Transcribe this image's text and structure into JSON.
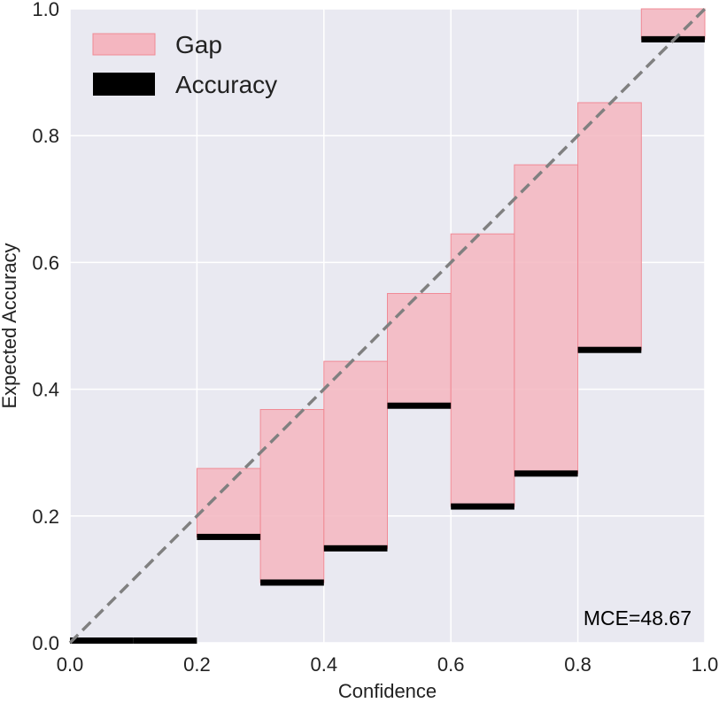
{
  "chart_data": {
    "type": "bar",
    "xlabel": "Confidence",
    "ylabel": "Expected Accuracy",
    "xlim": [
      0.0,
      1.0
    ],
    "ylim": [
      0.0,
      1.0
    ],
    "x_ticks": [
      "0.0",
      "0.2",
      "0.4",
      "0.6",
      "0.8",
      "1.0"
    ],
    "y_ticks": [
      "0.0",
      "0.2",
      "0.4",
      "0.6",
      "0.8",
      "1.0"
    ],
    "grid": true,
    "legend_position": "top-left",
    "legend": [
      {
        "label": "Gap",
        "color": "#f4b6c0"
      },
      {
        "label": "Accuracy",
        "color": "#000000"
      }
    ],
    "annotation": "MCE=48.67",
    "bin_width": 0.1,
    "bins": [
      {
        "left": 0.0,
        "accuracy": 0.0,
        "expected": 0.0
      },
      {
        "left": 0.1,
        "accuracy": 0.0,
        "expected": 0.0
      },
      {
        "left": 0.2,
        "accuracy": 0.167,
        "expected": 0.275
      },
      {
        "left": 0.3,
        "accuracy": 0.095,
        "expected": 0.368
      },
      {
        "left": 0.4,
        "accuracy": 0.149,
        "expected": 0.444
      },
      {
        "left": 0.5,
        "accuracy": 0.374,
        "expected": 0.551
      },
      {
        "left": 0.6,
        "accuracy": 0.215,
        "expected": 0.645
      },
      {
        "left": 0.7,
        "accuracy": 0.267,
        "expected": 0.754
      },
      {
        "left": 0.8,
        "accuracy": 0.462,
        "expected": 0.852
      },
      {
        "left": 0.9,
        "accuracy": 0.952,
        "expected": 1.0
      }
    ],
    "diagonal": {
      "from": [
        0.0,
        0.0
      ],
      "to": [
        1.0,
        1.0
      ],
      "style": "dashed",
      "color": "#808080"
    }
  },
  "colors": {
    "plot_background": "#e9e9f1",
    "grid": "#ffffff",
    "gap_fill": "#f4b6c0",
    "gap_edge": "#f08a95",
    "accuracy": "#000000",
    "diagonal": "#808080"
  }
}
